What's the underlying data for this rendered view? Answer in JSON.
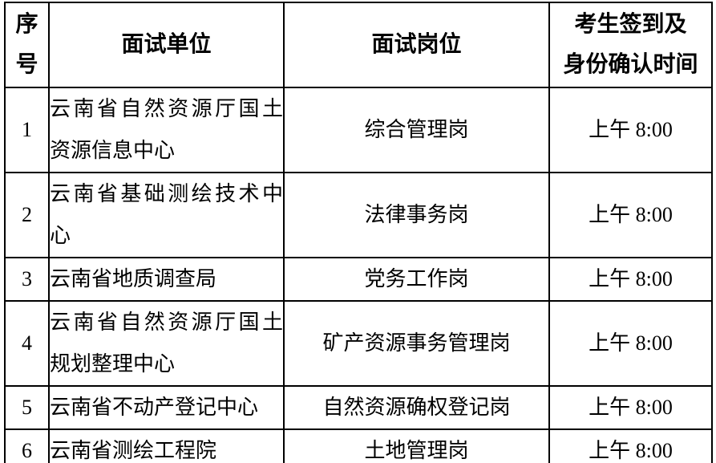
{
  "page": {
    "background_color": "#ffffff",
    "text_color": "#000000",
    "border_color": "#000000"
  },
  "table": {
    "columns": [
      {
        "key": "index",
        "label_lines": [
          "序",
          "号"
        ]
      },
      {
        "key": "unit",
        "label_lines": [
          "面试单位"
        ]
      },
      {
        "key": "position",
        "label_lines": [
          "面试岗位"
        ]
      },
      {
        "key": "time",
        "label_lines": [
          "考生签到及",
          "身份确认时间"
        ]
      }
    ],
    "rows": [
      {
        "index": "1",
        "unit": "云南省自然资源厅国土资源信息中心",
        "unit_lines": [
          "云南省自然资源厅国土",
          "资源信息中心"
        ],
        "position": "综合管理岗",
        "time": "上午 8:00"
      },
      {
        "index": "2",
        "unit": "云南省基础测绘技术中心",
        "unit_lines": [
          "云南省基础测绘技术中",
          "心"
        ],
        "position": "法律事务岗",
        "time": "上午 8:00"
      },
      {
        "index": "3",
        "unit": "云南省地质调查局",
        "unit_lines": [
          "云南省地质调查局"
        ],
        "position": "党务工作岗",
        "time": "上午 8:00"
      },
      {
        "index": "4",
        "unit": "云南省自然资源厅国土规划整理中心",
        "unit_lines": [
          "云南省自然资源厅国土",
          "规划整理中心"
        ],
        "position": "矿产资源事务管理岗",
        "time": "上午 8:00"
      },
      {
        "index": "5",
        "unit": "云南省不动产登记中心",
        "unit_lines": [
          "云南省不动产登记中心"
        ],
        "position": "自然资源确权登记岗",
        "time": "上午 8:00"
      },
      {
        "index": "6",
        "unit": "云南省测绘工程院",
        "unit_lines": [
          "云南省测绘工程院"
        ],
        "position": "土地管理岗",
        "time": "上午 8:00"
      }
    ]
  }
}
